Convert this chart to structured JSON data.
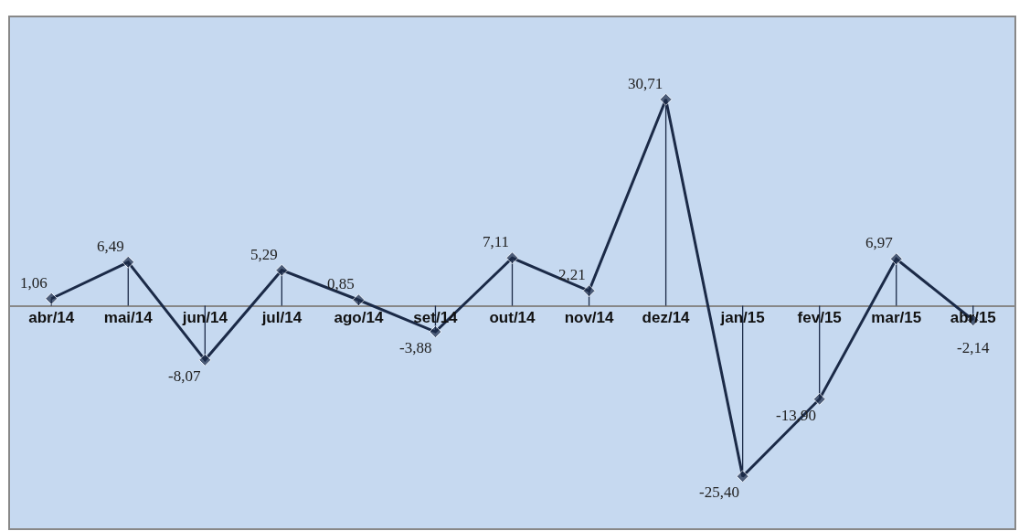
{
  "chart_data": {
    "type": "line",
    "categories": [
      "abr/14",
      "mai/14",
      "jun/14",
      "jul/14",
      "ago/14",
      "set/14",
      "out/14",
      "nov/14",
      "dez/14",
      "jan/15",
      "fev/15",
      "mar/15",
      "abr/15"
    ],
    "series": [
      {
        "type": "lollipop",
        "color": "#1b2a47",
        "marker": "diamond",
        "values": [
          1.06,
          6.49,
          -8.07,
          5.29,
          0.85,
          -3.88,
          7.11,
          2.21,
          30.71,
          -25.4,
          -13.9,
          6.97,
          -2.14
        ]
      },
      {
        "color": "#1b2a47",
        "marker": "none",
        "line_style": "solid",
        "values": [
          1.06,
          6.49,
          -8.07,
          5.29,
          0.85,
          -3.88,
          7.11,
          2.21,
          30.71,
          -25.4,
          -13.9,
          6.97,
          -2.14
        ],
        "value_labels": [
          "1,06",
          "6,49",
          "-8,07",
          "5,29",
          "0,85",
          "-3,88",
          "7,11",
          "2,21",
          "30,71",
          "-25,40",
          "-13,90",
          "6,97",
          "-2,14"
        ]
      }
    ],
    "grid": false
  }
}
